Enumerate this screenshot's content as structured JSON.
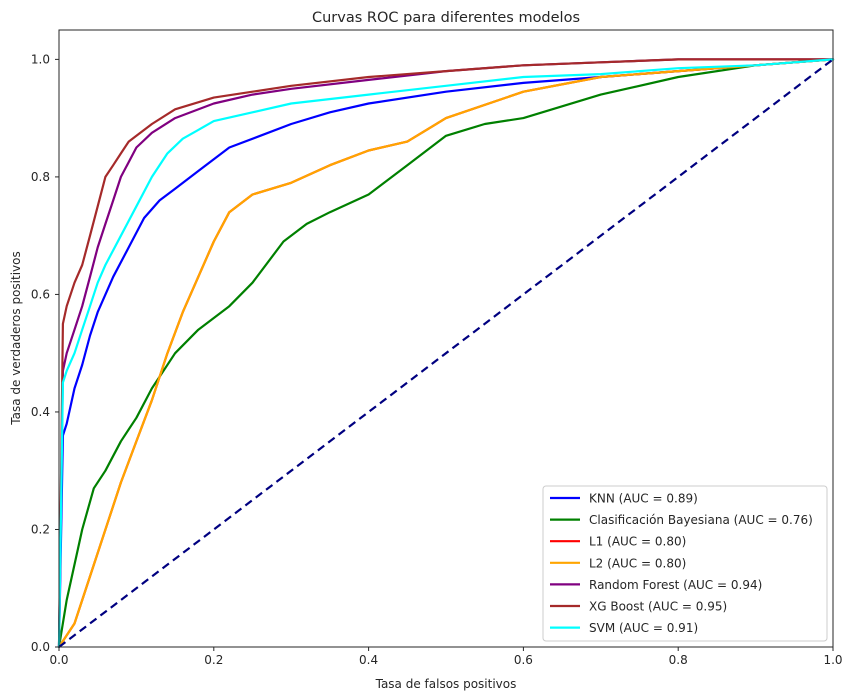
{
  "chart_data": {
    "type": "line",
    "title": "Curvas ROC para diferentes modelos",
    "xlabel": "Tasa de falsos positivos",
    "ylabel": "Tasa de verdaderos positivos",
    "xlim": [
      0,
      1
    ],
    "ylim": [
      0,
      1.05
    ],
    "xticks": [
      0.0,
      0.2,
      0.4,
      0.6,
      0.8,
      1.0
    ],
    "xtick_labels": [
      "0.0",
      "0.2",
      "0.4",
      "0.6",
      "0.8",
      "1.0"
    ],
    "yticks": [
      0.0,
      0.2,
      0.4,
      0.6,
      0.8,
      1.0
    ],
    "ytick_labels": [
      "0.0",
      "0.2",
      "0.4",
      "0.6",
      "0.8",
      "1.0"
    ],
    "grid": false,
    "legend_position": "lower-right",
    "series": [
      {
        "name": "KNN (AUC = 0.89)",
        "color": "#0000ff",
        "x": [
          0,
          0.005,
          0.01,
          0.02,
          0.03,
          0.04,
          0.05,
          0.07,
          0.09,
          0.11,
          0.13,
          0.15,
          0.18,
          0.22,
          0.26,
          0.3,
          0.35,
          0.4,
          0.5,
          0.6,
          0.7,
          0.8,
          0.9,
          1.0
        ],
        "y": [
          0,
          0.36,
          0.38,
          0.44,
          0.48,
          0.53,
          0.57,
          0.63,
          0.68,
          0.73,
          0.76,
          0.78,
          0.81,
          0.85,
          0.87,
          0.89,
          0.91,
          0.925,
          0.945,
          0.96,
          0.97,
          0.98,
          0.99,
          1.0
        ]
      },
      {
        "name": "Clasificación Bayesiana (AUC = 0.76)",
        "color": "#008000",
        "x": [
          0,
          0.01,
          0.03,
          0.045,
          0.06,
          0.08,
          0.1,
          0.12,
          0.15,
          0.18,
          0.22,
          0.25,
          0.29,
          0.32,
          0.35,
          0.4,
          0.45,
          0.5,
          0.55,
          0.6,
          0.7,
          0.8,
          0.9,
          1.0
        ],
        "y": [
          0,
          0.08,
          0.2,
          0.27,
          0.3,
          0.35,
          0.39,
          0.44,
          0.5,
          0.54,
          0.58,
          0.62,
          0.69,
          0.72,
          0.74,
          0.77,
          0.82,
          0.87,
          0.89,
          0.9,
          0.94,
          0.97,
          0.99,
          1.0
        ]
      },
      {
        "name": "L1 (AUC = 0.80)",
        "color": "#ff0000",
        "x": [
          0,
          0.02,
          0.05,
          0.08,
          0.1,
          0.12,
          0.14,
          0.16,
          0.18,
          0.2,
          0.22,
          0.25,
          0.3,
          0.35,
          0.4,
          0.45,
          0.5,
          0.6,
          0.7,
          0.8,
          0.9,
          1.0
        ],
        "y": [
          0,
          0.04,
          0.16,
          0.28,
          0.35,
          0.42,
          0.5,
          0.57,
          0.63,
          0.69,
          0.74,
          0.77,
          0.79,
          0.82,
          0.845,
          0.86,
          0.9,
          0.945,
          0.97,
          0.98,
          0.99,
          1.0
        ]
      },
      {
        "name": "L2 (AUC = 0.80)",
        "color": "#ffa500",
        "x": [
          0,
          0.02,
          0.05,
          0.08,
          0.1,
          0.12,
          0.14,
          0.16,
          0.18,
          0.2,
          0.22,
          0.25,
          0.3,
          0.35,
          0.4,
          0.45,
          0.5,
          0.6,
          0.7,
          0.8,
          0.9,
          1.0
        ],
        "y": [
          0,
          0.04,
          0.16,
          0.28,
          0.35,
          0.42,
          0.5,
          0.57,
          0.63,
          0.69,
          0.74,
          0.77,
          0.79,
          0.82,
          0.845,
          0.86,
          0.9,
          0.945,
          0.97,
          0.98,
          0.99,
          1.0
        ]
      },
      {
        "name": "Random Forest (AUC = 0.94)",
        "color": "#800080",
        "x": [
          0,
          0.005,
          0.01,
          0.02,
          0.03,
          0.04,
          0.05,
          0.06,
          0.07,
          0.08,
          0.1,
          0.12,
          0.15,
          0.2,
          0.25,
          0.3,
          0.4,
          0.5,
          0.6,
          0.7,
          0.8,
          0.9,
          1.0
        ],
        "y": [
          0,
          0.47,
          0.5,
          0.54,
          0.58,
          0.63,
          0.68,
          0.72,
          0.76,
          0.8,
          0.85,
          0.875,
          0.9,
          0.925,
          0.94,
          0.95,
          0.965,
          0.98,
          0.99,
          0.995,
          1.0,
          1.0,
          1.0
        ]
      },
      {
        "name": "XG Boost (AUC = 0.95)",
        "color": "#a52a2a",
        "x": [
          0,
          0.005,
          0.01,
          0.02,
          0.03,
          0.04,
          0.05,
          0.06,
          0.07,
          0.08,
          0.09,
          0.1,
          0.12,
          0.15,
          0.2,
          0.25,
          0.3,
          0.4,
          0.5,
          0.6,
          0.7,
          0.8,
          0.9,
          1.0
        ],
        "y": [
          0,
          0.55,
          0.58,
          0.62,
          0.65,
          0.7,
          0.75,
          0.8,
          0.82,
          0.84,
          0.86,
          0.87,
          0.89,
          0.915,
          0.935,
          0.945,
          0.955,
          0.97,
          0.98,
          0.99,
          0.995,
          1.0,
          1.0,
          1.0
        ]
      },
      {
        "name": "SVM (AUC = 0.91)",
        "color": "#00ffff",
        "x": [
          0,
          0.005,
          0.01,
          0.02,
          0.03,
          0.04,
          0.05,
          0.06,
          0.08,
          0.1,
          0.12,
          0.14,
          0.16,
          0.18,
          0.2,
          0.25,
          0.3,
          0.4,
          0.5,
          0.6,
          0.7,
          0.8,
          0.9,
          1.0
        ],
        "y": [
          0,
          0.45,
          0.47,
          0.5,
          0.54,
          0.58,
          0.62,
          0.65,
          0.7,
          0.75,
          0.8,
          0.84,
          0.865,
          0.88,
          0.895,
          0.91,
          0.925,
          0.94,
          0.955,
          0.97,
          0.975,
          0.985,
          0.99,
          1.0
        ]
      }
    ],
    "reference_line": {
      "x": [
        0,
        1
      ],
      "y": [
        0,
        1
      ],
      "color": "#000080",
      "style": "dashed"
    }
  }
}
